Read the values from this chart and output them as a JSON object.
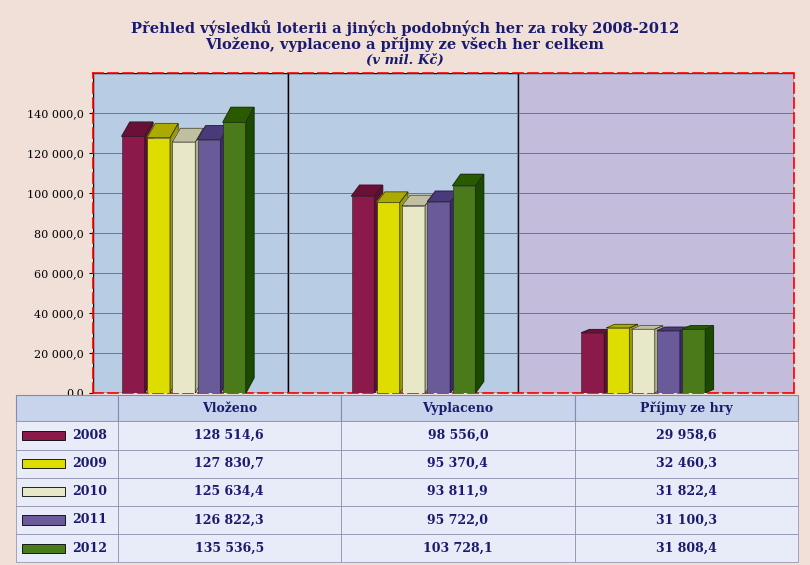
{
  "title_line1": "Přehled výsledků loterii a jiných podobných her za roky 2008-2012",
  "title_line2": "Vloženo, vyplaceno a příjmy ze všech her celkem",
  "title_line3": "(v mil. Kč)",
  "categories": [
    "Vloženo",
    "Vyplaceno",
    "Příjmy ze hry"
  ],
  "years": [
    "2008",
    "2009",
    "2010",
    "2011",
    "2012"
  ],
  "data": [
    [
      128514.6,
      98556.0,
      29958.6
    ],
    [
      127830.7,
      95370.4,
      32460.3
    ],
    [
      125634.4,
      93811.9,
      31822.4
    ],
    [
      126822.3,
      95722.0,
      31100.3
    ],
    [
      135536.5,
      103728.1,
      31808.4
    ]
  ],
  "bar_colors": [
    "#8B1A4A",
    "#DDDD00",
    "#E8E8C8",
    "#6A5A9A",
    "#4A7A1A"
  ],
  "bar_top_colors": [
    "#6A0F35",
    "#AAAA00",
    "#C0C0A0",
    "#4A3A7A",
    "#2A5A00"
  ],
  "bar_side_colors": [
    "#5C0F30",
    "#999900",
    "#B0B090",
    "#3A2A6A",
    "#1A4A00"
  ],
  "ylim": [
    0,
    160000
  ],
  "yticks": [
    0,
    20000,
    40000,
    60000,
    80000,
    100000,
    120000,
    140000
  ],
  "ytick_labels": [
    "0,0",
    "20 000,0",
    "40 000,0",
    "60 000,0",
    "80 000,0",
    "100 000,0",
    "120 000,0",
    "140 000,0"
  ],
  "table_data": [
    [
      "2008",
      "128 514,6",
      "98 556,0",
      "29 958,6"
    ],
    [
      "2009",
      "127 830,7",
      "95 370,4",
      "32 460,3"
    ],
    [
      "2010",
      "125 634,4",
      "93 811,9",
      "31 822,4"
    ],
    [
      "2011",
      "126 822,3",
      "95 722,0",
      "31 100,3"
    ],
    [
      "2012",
      "135 536,5",
      "103 728,1",
      "31 808,4"
    ]
  ],
  "table_headers": [
    "",
    "Vloženo",
    "Vyplaceno",
    "Příjmy ze hry"
  ]
}
